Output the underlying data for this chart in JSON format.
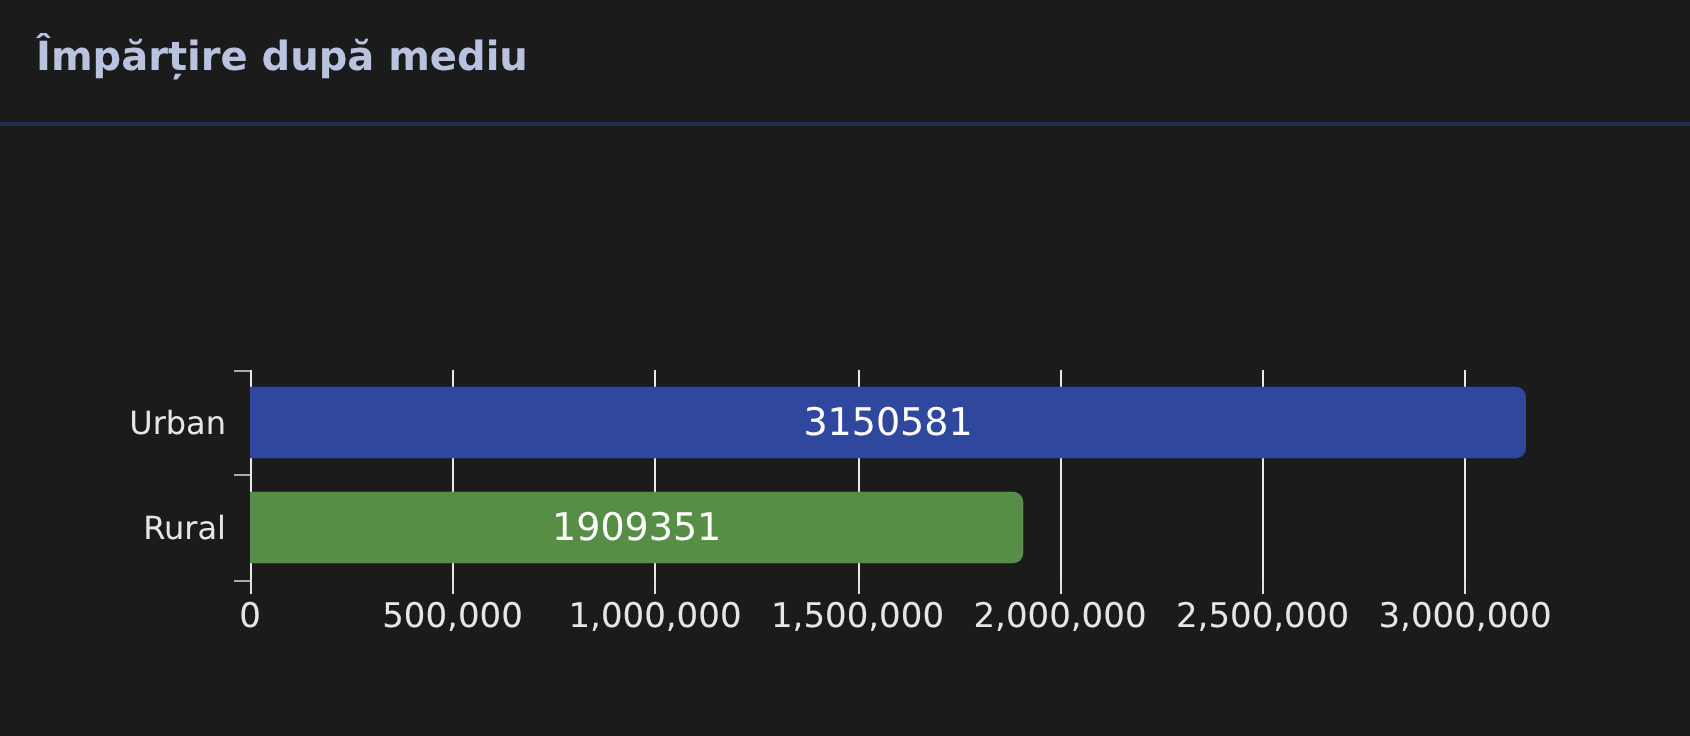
{
  "chart_data": {
    "type": "bar",
    "orientation": "horizontal",
    "title": "Împărțire după mediu",
    "categories": [
      "Urban",
      "Rural"
    ],
    "values": [
      3150581,
      1909351
    ],
    "colors": [
      "#2f479d",
      "#558e44"
    ],
    "xlim": [
      0,
      3150581
    ],
    "xticks": [
      {
        "value": 0,
        "label": "0"
      },
      {
        "value": 500000,
        "label": "500,000"
      },
      {
        "value": 1000000,
        "label": "1,000,000"
      },
      {
        "value": 1500000,
        "label": "1,500,000"
      },
      {
        "value": 2000000,
        "label": "2,000,000"
      },
      {
        "value": 2500000,
        "label": "2,500,000"
      },
      {
        "value": 3000000,
        "label": "3,000,000"
      }
    ],
    "grid": "x",
    "data_labels": true
  }
}
